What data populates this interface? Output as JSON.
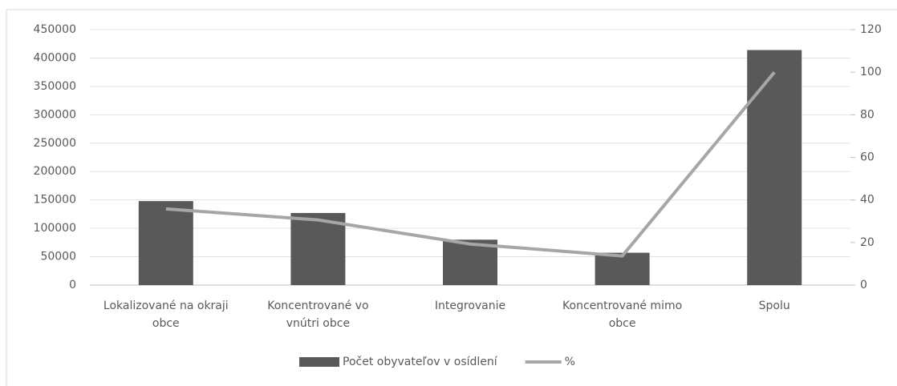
{
  "chart_data": {
    "type": "bar",
    "categories": [
      "Lokalizované na okraji obce",
      "Koncentrované vo vnútri obce",
      "Integrovanie",
      "Koncentrované mimo obce",
      "Spolu"
    ],
    "series": [
      {
        "name": "Počet obyvateľov v osídlení",
        "type": "bar",
        "color": "#595959",
        "values": [
          148000,
          127000,
          80000,
          57000,
          414000
        ]
      },
      {
        "name": "%",
        "type": "line",
        "axis": "y2",
        "color": "#a6a6a6",
        "values": [
          35.8,
          30.6,
          19.3,
          13.7,
          100
        ]
      }
    ],
    "ylim": [
      0,
      450000
    ],
    "yticks": [
      0,
      50000,
      100000,
      150000,
      200000,
      250000,
      300000,
      350000,
      400000,
      450000
    ],
    "y2lim": [
      0,
      120
    ],
    "y2ticks": [
      0,
      20,
      40,
      60,
      80,
      100,
      120
    ],
    "grid": true,
    "legend": "bottom"
  }
}
